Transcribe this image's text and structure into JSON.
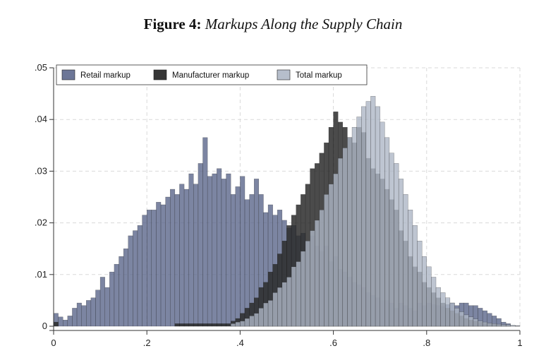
{
  "title": {
    "prefix": "Figure 4:",
    "main": "Markups Along the Supply Chain"
  },
  "chart_data": {
    "type": "bar",
    "subtype": "overlaid histogram",
    "title": "Figure 4: Markups Along the Supply Chain",
    "xlabel": "",
    "ylabel": "",
    "xlim": [
      0,
      1
    ],
    "ylim": [
      0,
      0.05
    ],
    "x_ticks": [
      0,
      0.2,
      0.4,
      0.6,
      0.8,
      1
    ],
    "x_tick_labels": [
      "0",
      ".2",
      ".4",
      ".6",
      ".8",
      "1"
    ],
    "y_ticks": [
      0,
      0.01,
      0.02,
      0.03,
      0.04,
      0.05
    ],
    "y_tick_labels": [
      "0",
      ".01",
      ".02",
      ".03",
      ".04",
      ".05"
    ],
    "grid": "dashed, both axes",
    "legend_position": "top-left",
    "bin_width": 0.01,
    "series": [
      {
        "name": "Retail markup",
        "color": "#5f6a8e",
        "opacity": 0.82,
        "bin_start": 0,
        "values": [
          0.0025,
          0.0018,
          0.0012,
          0.002,
          0.0035,
          0.0045,
          0.004,
          0.005,
          0.0055,
          0.007,
          0.0095,
          0.0075,
          0.0105,
          0.012,
          0.0135,
          0.015,
          0.0175,
          0.0185,
          0.0195,
          0.0215,
          0.0225,
          0.0225,
          0.024,
          0.0235,
          0.025,
          0.0265,
          0.0255,
          0.0275,
          0.0265,
          0.0295,
          0.0275,
          0.0315,
          0.0365,
          0.029,
          0.0295,
          0.0305,
          0.0285,
          0.0295,
          0.0255,
          0.027,
          0.029,
          0.0245,
          0.0255,
          0.0285,
          0.0255,
          0.022,
          0.0235,
          0.0215,
          0.0225,
          0.0205,
          0.019,
          0.0195,
          0.0175,
          0.018,
          0.0165,
          0.0175,
          0.0155,
          0.0145,
          0.0155,
          0.0125,
          0.0135,
          0.011,
          0.0105,
          0.0095,
          0.0085,
          0.008,
          0.0075,
          0.0065,
          0.006,
          0.0055,
          0.005,
          0.005,
          0.0045,
          0.0035,
          0.0045,
          0.004,
          0.0035,
          0.003,
          0.0045,
          0.004,
          0.0045,
          0.0042,
          0.004,
          0.0038,
          0.0042,
          0.0045,
          0.004,
          0.0045,
          0.0045,
          0.004,
          0.004,
          0.0035,
          0.003,
          0.0025,
          0.002,
          0.0015,
          0.0008,
          0.0005,
          0,
          0
        ]
      },
      {
        "name": "Manufacturer markup",
        "color": "#2b2b2b",
        "opacity": 0.85,
        "bin_start": 0,
        "values": [
          0.0008,
          0,
          0,
          0,
          0,
          0,
          0,
          0,
          0,
          0,
          0,
          0,
          0,
          0,
          0,
          0,
          0,
          0,
          0,
          0,
          0,
          0,
          0,
          0,
          0,
          0,
          0.0005,
          0.0005,
          0.0005,
          0.0005,
          0.0005,
          0.0005,
          0.0005,
          0.0005,
          0.0005,
          0.0005,
          0.0005,
          0.0005,
          0.001,
          0.0015,
          0.0025,
          0.0035,
          0.0045,
          0.0055,
          0.0075,
          0.0085,
          0.0105,
          0.012,
          0.014,
          0.0165,
          0.0195,
          0.0215,
          0.0235,
          0.0255,
          0.0275,
          0.0305,
          0.0315,
          0.0335,
          0.0355,
          0.0385,
          0.0415,
          0.0395,
          0.0385,
          0.0365,
          0.0355,
          0.0385,
          0.0375,
          0.0325,
          0.0305,
          0.0295,
          0.0285,
          0.0265,
          0.0245,
          0.0225,
          0.0185,
          0.0165,
          0.0135,
          0.0115,
          0.0105,
          0.0085,
          0.0075,
          0.0065,
          0.0055,
          0.0045,
          0.0035,
          0.003,
          0.0025,
          0.002,
          0.0015,
          0.0012,
          0.001,
          0.0008,
          0.0006,
          0.0005,
          0.0004,
          0.0003,
          0.0002,
          0.0002,
          0.0001,
          0.0001
        ]
      },
      {
        "name": "Total markup",
        "color": "#aeb7c5",
        "opacity": 0.8,
        "bin_start": 0,
        "values": [
          0,
          0,
          0,
          0,
          0,
          0,
          0,
          0,
          0,
          0,
          0,
          0,
          0,
          0,
          0,
          0,
          0,
          0,
          0,
          0,
          0,
          0,
          0,
          0,
          0,
          0,
          0,
          0,
          0,
          0,
          0,
          0,
          0,
          0,
          0,
          0,
          0,
          0,
          0.0005,
          0.0008,
          0.001,
          0.0015,
          0.002,
          0.0025,
          0.0035,
          0.0045,
          0.005,
          0.0065,
          0.0075,
          0.0085,
          0.0095,
          0.0115,
          0.0125,
          0.0145,
          0.0165,
          0.0185,
          0.0205,
          0.0225,
          0.0255,
          0.0275,
          0.0295,
          0.0325,
          0.0345,
          0.0365,
          0.0385,
          0.0405,
          0.0425,
          0.0435,
          0.0445,
          0.0425,
          0.0395,
          0.0365,
          0.0335,
          0.0315,
          0.0285,
          0.0255,
          0.0225,
          0.0195,
          0.0165,
          0.0135,
          0.0115,
          0.0095,
          0.0075,
          0.0065,
          0.0055,
          0.0045,
          0.0035,
          0.0028,
          0.0022,
          0.0018,
          0.0014,
          0.001,
          0.0008,
          0.0006,
          0.0005,
          0.0004,
          0.0003,
          0.0003,
          0.0002,
          0.0001
        ]
      }
    ],
    "colors": {
      "retail": "#5f6a8e",
      "manufacturer": "#2b2b2b",
      "total": "#aeb7c5",
      "axis": "#333333",
      "grid": "#d9d9d9"
    }
  }
}
